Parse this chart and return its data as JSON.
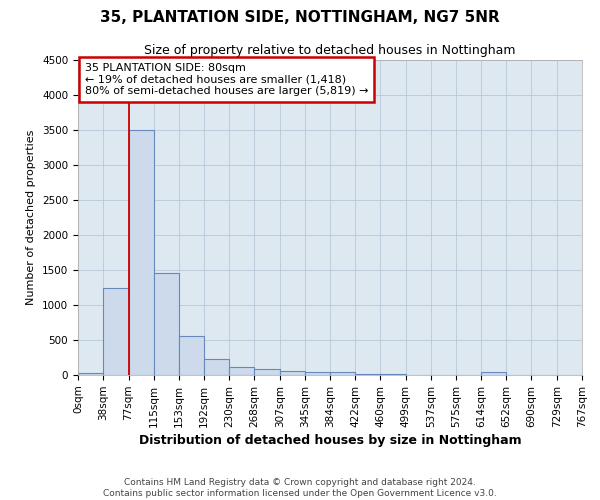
{
  "title": "35, PLANTATION SIDE, NOTTINGHAM, NG7 5NR",
  "subtitle": "Size of property relative to detached houses in Nottingham",
  "xlabel": "Distribution of detached houses by size in Nottingham",
  "ylabel": "Number of detached properties",
  "footer_line1": "Contains HM Land Registry data © Crown copyright and database right 2024.",
  "footer_line2": "Contains public sector information licensed under the Open Government Licence v3.0.",
  "bar_edges": [
    0,
    38,
    77,
    115,
    153,
    192,
    230,
    268,
    307,
    345,
    384,
    422,
    460,
    499,
    537,
    575,
    614,
    652,
    690,
    729,
    767
  ],
  "bar_heights": [
    30,
    1250,
    3500,
    1460,
    560,
    230,
    115,
    85,
    55,
    40,
    40,
    10,
    10,
    0,
    0,
    0,
    40,
    0,
    0,
    0
  ],
  "bar_color": "#ccdaeb",
  "bar_edge_color": "#6688bb",
  "red_line_x": 77,
  "ylim_max": 4500,
  "yticks": [
    0,
    500,
    1000,
    1500,
    2000,
    2500,
    3000,
    3500,
    4000,
    4500
  ],
  "annotation_line1": "35 PLANTATION SIDE: 80sqm",
  "annotation_line2": "← 19% of detached houses are smaller (1,418)",
  "annotation_line3": "80% of semi-detached houses are larger (5,819) →",
  "annotation_box_edgecolor": "#cc0000",
  "bg_color": "#ffffff",
  "plot_bg_color": "#dde8f0",
  "grid_color": "#b8c8d8",
  "title_fontsize": 11,
  "subtitle_fontsize": 9,
  "ylabel_fontsize": 8,
  "xlabel_fontsize": 9,
  "tick_fontsize": 7.5,
  "ann_fontsize": 8,
  "footer_fontsize": 6.5,
  "xtick_labels": [
    "0sqm",
    "38sqm",
    "77sqm",
    "115sqm",
    "153sqm",
    "192sqm",
    "230sqm",
    "268sqm",
    "307sqm",
    "345sqm",
    "384sqm",
    "422sqm",
    "460sqm",
    "499sqm",
    "537sqm",
    "575sqm",
    "614sqm",
    "652sqm",
    "690sqm",
    "729sqm",
    "767sqm"
  ]
}
